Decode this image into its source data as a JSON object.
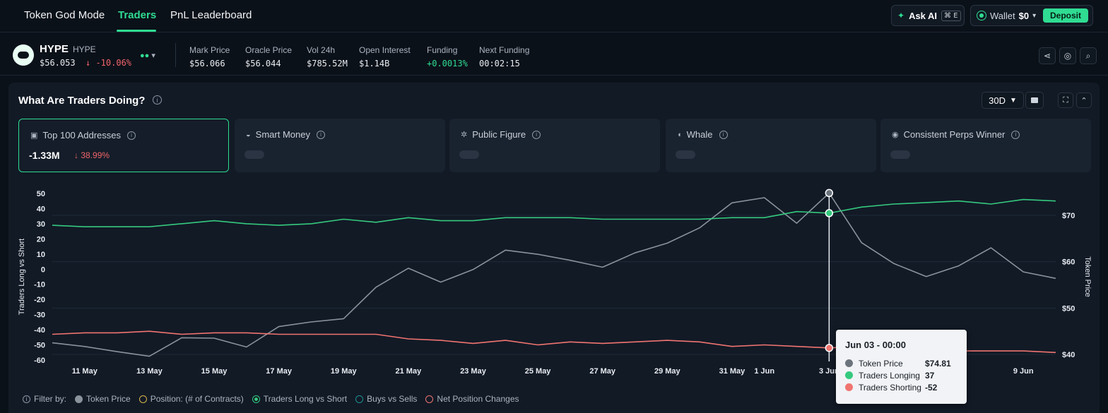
{
  "nav": {
    "tabs": [
      {
        "label": "Token God Mode",
        "active": false
      },
      {
        "label": "Traders",
        "active": true
      },
      {
        "label": "PnL Leaderboard",
        "active": false
      }
    ],
    "ask_ai": {
      "label": "Ask AI",
      "shortcut": "⌘ E"
    },
    "wallet": {
      "label": "Wallet",
      "amount": "$0",
      "deposit_label": "Deposit"
    }
  },
  "token": {
    "name": "HYPE",
    "symbol": "HYPE",
    "price": "$56.053",
    "change": "-10.06%",
    "stats": [
      {
        "label": "Mark Price",
        "value": "$56.066"
      },
      {
        "label": "Oracle Price",
        "value": "$56.044"
      },
      {
        "label": "Vol 24h",
        "value": "$785.52M"
      },
      {
        "label": "Open Interest",
        "value": "$1.14B"
      },
      {
        "label": "Funding",
        "value": "+0.0013%"
      },
      {
        "label": "Next Funding",
        "value": "00:02:15"
      }
    ]
  },
  "panel": {
    "title": "What Are Traders Doing?",
    "range": "30D",
    "cards": [
      {
        "label": "Top 100 Addresses",
        "value": "-1.33M",
        "change": "38.99%",
        "active": true
      },
      {
        "label": "Smart Money",
        "active": false
      },
      {
        "label": "Public Figure",
        "active": false
      },
      {
        "label": "Whale",
        "active": false
      },
      {
        "label": "Consistent Perps Winner",
        "active": false
      }
    ]
  },
  "chart_data": {
    "type": "line",
    "left_axis_label": "Traders Long vs Short",
    "right_axis_label": "Token Price",
    "left_ylim": [
      -60,
      50
    ],
    "left_ticks": [
      50,
      40,
      30,
      20,
      10,
      0,
      -10,
      -20,
      -30,
      -40,
      -50,
      -60
    ],
    "right_ylim": [
      40,
      75
    ],
    "right_ticks": [
      "$70",
      "$60",
      "$50",
      "$40"
    ],
    "x": [
      "10 May",
      "11 May",
      "12 May",
      "13 May",
      "14 May",
      "15 May",
      "16 May",
      "17 May",
      "18 May",
      "19 May",
      "20 May",
      "21 May",
      "22 May",
      "23 May",
      "24 May",
      "25 May",
      "26 May",
      "27 May",
      "28 May",
      "29 May",
      "30 May",
      "31 May",
      "1 Jun",
      "2 Jun",
      "3 Jun",
      "4 Jun",
      "5 Jun",
      "6 Jun",
      "7 Jun",
      "8 Jun",
      "9 Jun",
      "10 Jun"
    ],
    "x_tick_labels": [
      "11 May",
      "13 May",
      "15 May",
      "17 May",
      "19 May",
      "21 May",
      "23 May",
      "25 May",
      "27 May",
      "29 May",
      "31 May",
      "1 Jun",
      "3 Jun",
      "9 Jun"
    ],
    "series": [
      {
        "name": "Token Price",
        "axis": "right",
        "color": "#8a929c",
        "values": [
          42.5,
          41.7,
          40.6,
          39.6,
          43.6,
          43.5,
          41.6,
          46.0,
          47.0,
          47.7,
          54.5,
          58.6,
          55.6,
          58.3,
          62.5,
          61.6,
          60.3,
          58.8,
          61.9,
          64.0,
          67.3,
          72.7,
          73.8,
          68.3,
          74.81,
          64.1,
          59.6,
          56.8,
          59.1,
          63.0,
          57.8,
          56.4
        ]
      },
      {
        "name": "Traders Longing",
        "axis": "left",
        "color": "#35c97e",
        "values": [
          29,
          28,
          28,
          28,
          30,
          32,
          30,
          29,
          30,
          33,
          31,
          34,
          32,
          32,
          34,
          34,
          34,
          33,
          33,
          33,
          33,
          34,
          34,
          38,
          37,
          41,
          43,
          44,
          45,
          43,
          46,
          45
        ]
      },
      {
        "name": "Traders Shorting",
        "axis": "left",
        "color": "#f07470",
        "values": [
          -43,
          -42,
          -42,
          -41,
          -43,
          -42,
          -42,
          -43,
          -43,
          -43,
          -43,
          -46,
          -47,
          -49,
          -47,
          -50,
          -48,
          -49,
          -48,
          -47,
          -48,
          -51,
          -50,
          -51,
          -52,
          -51,
          -53,
          -54,
          -54,
          -54,
          -54,
          -55
        ]
      }
    ],
    "hover": {
      "index": 24
    }
  },
  "tooltip": {
    "title": "Jun 03 - 00:00",
    "rows": [
      {
        "label": "Token Price",
        "value": "$74.81",
        "color": "#6b737d"
      },
      {
        "label": "Traders Longing",
        "value": "37",
        "color": "#35c97e"
      },
      {
        "label": "Traders Shorting",
        "value": "-52",
        "color": "#f07470"
      }
    ]
  },
  "filters": {
    "label": "Filter by:",
    "items": [
      {
        "label": "Token Price",
        "color": "#8a929c",
        "filled": true
      },
      {
        "label": "Position: (# of Contracts)",
        "color": "#d9b44a",
        "filled": false
      },
      {
        "label": "Traders Long vs Short",
        "color": "#35c97e",
        "filled": false,
        "selected": true
      },
      {
        "label": "Buys vs Sells",
        "color": "#1f8f8f",
        "filled": false
      },
      {
        "label": "Net Position Changes",
        "color": "#f07470",
        "filled": false
      }
    ]
  }
}
